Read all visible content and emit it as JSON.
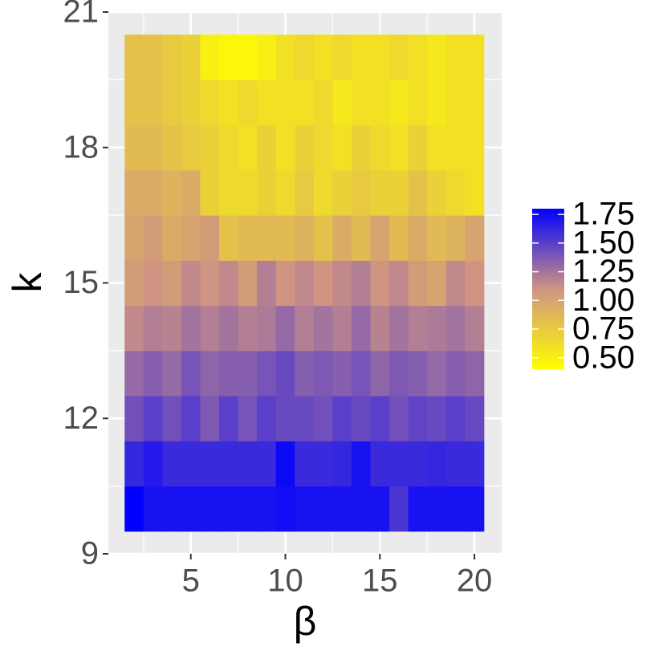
{
  "chart_data": {
    "type": "heatmap",
    "x_label": "β",
    "y_label": "k",
    "x": [
      2,
      3,
      4,
      5,
      6,
      7,
      8,
      9,
      10,
      11,
      12,
      13,
      14,
      15,
      16,
      17,
      18,
      19,
      20
    ],
    "y": [
      10,
      11,
      12,
      13,
      14,
      15,
      16,
      17,
      18,
      19,
      20
    ],
    "z": [
      [
        1.8,
        1.72,
        1.72,
        1.72,
        1.72,
        1.72,
        1.72,
        1.72,
        1.74,
        1.72,
        1.72,
        1.72,
        1.72,
        1.72,
        1.55,
        1.72,
        1.72,
        1.72,
        1.72
      ],
      [
        1.62,
        1.68,
        1.6,
        1.6,
        1.6,
        1.6,
        1.6,
        1.6,
        1.76,
        1.6,
        1.6,
        1.62,
        1.72,
        1.6,
        1.6,
        1.6,
        1.62,
        1.6,
        1.6
      ],
      [
        1.42,
        1.5,
        1.42,
        1.5,
        1.38,
        1.5,
        1.4,
        1.5,
        1.45,
        1.45,
        1.42,
        1.5,
        1.45,
        1.5,
        1.42,
        1.48,
        1.45,
        1.5,
        1.45
      ],
      [
        1.3,
        1.35,
        1.3,
        1.4,
        1.32,
        1.35,
        1.35,
        1.4,
        1.45,
        1.35,
        1.38,
        1.35,
        1.4,
        1.32,
        1.38,
        1.35,
        1.3,
        1.35,
        1.32
      ],
      [
        1.15,
        1.2,
        1.18,
        1.25,
        1.2,
        1.25,
        1.2,
        1.22,
        1.3,
        1.2,
        1.25,
        1.2,
        1.3,
        1.18,
        1.25,
        1.2,
        1.22,
        1.25,
        1.2
      ],
      [
        1.05,
        1.1,
        1.05,
        1.15,
        1.1,
        1.15,
        1.05,
        1.2,
        1.1,
        1.15,
        1.1,
        1.15,
        1.2,
        1.1,
        1.15,
        1.05,
        1.0,
        1.15,
        1.1
      ],
      [
        1.0,
        1.05,
        0.95,
        1.0,
        1.05,
        0.8,
        0.85,
        0.85,
        0.85,
        0.9,
        0.8,
        0.95,
        0.85,
        1.0,
        0.85,
        0.95,
        0.85,
        0.9,
        1.0
      ],
      [
        0.95,
        0.95,
        0.9,
        0.95,
        0.7,
        0.65,
        0.65,
        0.7,
        0.65,
        0.75,
        0.65,
        0.7,
        0.75,
        0.7,
        0.7,
        0.8,
        0.7,
        0.65,
        0.6
      ],
      [
        0.85,
        0.85,
        0.8,
        0.75,
        0.7,
        0.65,
        0.6,
        0.7,
        0.6,
        0.7,
        0.65,
        0.6,
        0.7,
        0.65,
        0.6,
        0.7,
        0.6,
        0.6,
        0.6
      ],
      [
        0.8,
        0.8,
        0.75,
        0.7,
        0.65,
        0.6,
        0.65,
        0.6,
        0.6,
        0.6,
        0.65,
        0.55,
        0.6,
        0.6,
        0.55,
        0.6,
        0.55,
        0.6,
        0.6
      ],
      [
        0.8,
        0.8,
        0.75,
        0.7,
        0.5,
        0.45,
        0.45,
        0.5,
        0.6,
        0.65,
        0.6,
        0.65,
        0.6,
        0.6,
        0.65,
        0.6,
        0.55,
        0.6,
        0.6
      ]
    ],
    "xlim": [
      0.64,
      21.44
    ],
    "ylim": [
      9,
      21
    ],
    "xticks": [
      5,
      10,
      15,
      20
    ],
    "yticks": [
      9,
      12,
      15,
      18,
      21
    ],
    "colorlim": [
      0.4,
      1.8
    ],
    "colors": [
      "#ffff00",
      "#d09482",
      "#0000ff"
    ],
    "colorbar_ticks": [
      {
        "value": 0.5,
        "label": "0.50"
      },
      0.75,
      {
        "value": 1.0,
        "label": "1.00"
      },
      1.25,
      {
        "value": 1.5,
        "label": "1.50"
      },
      1.75
    ],
    "grid": true
  }
}
